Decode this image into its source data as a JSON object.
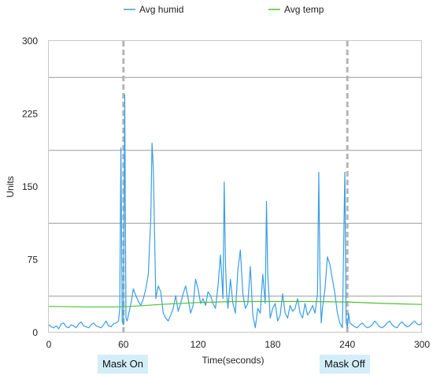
{
  "chart_data": {
    "type": "line",
    "xlabel": "Time(seconds)",
    "ylabel": "Units",
    "xlim": [
      0,
      300
    ],
    "ylim": [
      0,
      300
    ],
    "xticks": [
      0,
      60,
      120,
      180,
      240,
      300
    ],
    "yticks": [
      0,
      75,
      150,
      225,
      300
    ],
    "gridlines_y": [
      37.5,
      112.5,
      187.5,
      262.5
    ],
    "grid": true,
    "legend_position": "top",
    "series": [
      {
        "name": "Avg humid",
        "color": "#3a9ee4",
        "x": [
          0,
          2,
          4,
          6,
          8,
          10,
          12,
          14,
          16,
          18,
          20,
          22,
          24,
          26,
          28,
          30,
          32,
          34,
          36,
          38,
          40,
          42,
          44,
          46,
          48,
          50,
          52,
          54,
          56,
          57,
          58,
          59,
          60,
          61,
          62,
          63,
          64,
          66,
          68,
          70,
          72,
          74,
          76,
          78,
          80,
          82,
          83,
          84,
          86,
          88,
          90,
          92,
          94,
          96,
          98,
          100,
          102,
          104,
          106,
          108,
          110,
          112,
          114,
          116,
          118,
          120,
          122,
          124,
          126,
          128,
          130,
          132,
          134,
          136,
          138,
          140,
          141,
          142,
          143,
          144,
          146,
          148,
          150,
          152,
          154,
          156,
          158,
          160,
          162,
          164,
          166,
          168,
          170,
          172,
          174,
          175,
          176,
          178,
          180,
          182,
          184,
          186,
          188,
          190,
          192,
          194,
          196,
          198,
          200,
          202,
          204,
          206,
          208,
          210,
          212,
          214,
          216,
          217,
          218,
          219,
          220,
          222,
          224,
          226,
          228,
          230,
          232,
          234,
          236,
          238,
          239,
          240,
          241,
          242,
          244,
          246,
          248,
          250,
          252,
          254,
          256,
          258,
          260,
          262,
          264,
          266,
          268,
          270,
          272,
          274,
          276,
          278,
          280,
          282,
          284,
          286,
          288,
          290,
          292,
          294,
          296,
          298,
          300
        ],
        "values": [
          8,
          6,
          5,
          7,
          4,
          9,
          10,
          6,
          5,
          8,
          7,
          5,
          9,
          11,
          7,
          6,
          5,
          8,
          10,
          7,
          6,
          5,
          8,
          12,
          7,
          6,
          9,
          10,
          12,
          25,
          190,
          12,
          8,
          245,
          15,
          12,
          18,
          30,
          45,
          38,
          32,
          28,
          35,
          45,
          60,
          120,
          195,
          170,
          35,
          48,
          42,
          20,
          15,
          12,
          18,
          25,
          38,
          22,
          30,
          40,
          48,
          35,
          20,
          28,
          55,
          45,
          30,
          35,
          28,
          42,
          38,
          30,
          25,
          48,
          80,
          35,
          155,
          70,
          40,
          25,
          55,
          30,
          20,
          65,
          85,
          40,
          25,
          30,
          68,
          18,
          5,
          25,
          20,
          60,
          30,
          135,
          60,
          15,
          25,
          30,
          12,
          18,
          40,
          20,
          15,
          28,
          22,
          25,
          35,
          20,
          15,
          30,
          18,
          22,
          28,
          20,
          40,
          165,
          60,
          10,
          25,
          45,
          78,
          70,
          55,
          40,
          20,
          10,
          5,
          165,
          12,
          5,
          20,
          10,
          8,
          6,
          5,
          8,
          10,
          7,
          5,
          6,
          8,
          12,
          9,
          6,
          5,
          7,
          10,
          12,
          8,
          6,
          5,
          9,
          11,
          8,
          6,
          7,
          10,
          12,
          9,
          8,
          10
        ]
      },
      {
        "name": "Avg temp",
        "color": "#4ec232",
        "x": [
          0,
          30,
          60,
          90,
          120,
          150,
          180,
          210,
          240,
          270,
          300
        ],
        "values": [
          27,
          26.5,
          26.5,
          29,
          31,
          32,
          32,
          32,
          31.5,
          30,
          29
        ]
      }
    ],
    "annotations": [
      {
        "x": 60,
        "label": "Mask On"
      },
      {
        "x": 240,
        "label": "Mask Off"
      }
    ]
  }
}
